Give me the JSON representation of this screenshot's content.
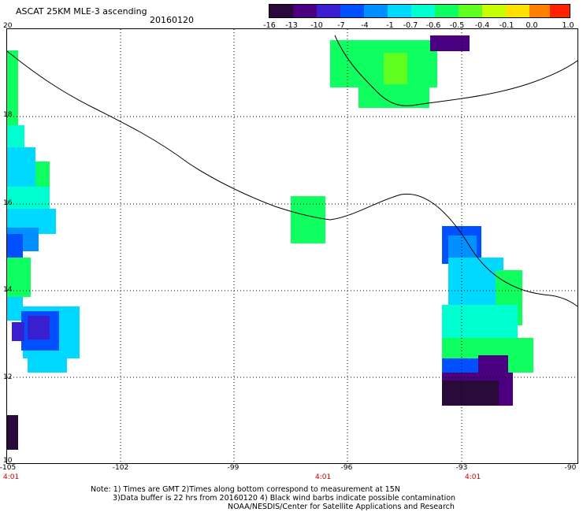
{
  "header": {
    "title": "ASCAT 25KM MLE-3 ascending",
    "date": "20160120"
  },
  "colorbar": {
    "labels": [
      "-16",
      "-13",
      "-10",
      "-7",
      "-4",
      "-1",
      "-0.7",
      "-0.6",
      "-0.5",
      "-0.4",
      "-0.1",
      "0.0",
      "1.0"
    ],
    "colors": [
      "#2a0a3a",
      "#4b0082",
      "#3a1fd0",
      "#0050ff",
      "#0090ff",
      "#00d8ff",
      "#00ffd0",
      "#10ff60",
      "#60ff20",
      "#c8ff00",
      "#ffe000",
      "#ff8000",
      "#ff2000"
    ]
  },
  "map": {
    "lat_labels": [
      "20",
      "18",
      "16",
      "14",
      "12",
      "10"
    ],
    "lon_labels": [
      "-105",
      "-102",
      "-99",
      "-96",
      "-93",
      "-90"
    ],
    "time_labels": [
      "4:01",
      "4:01",
      "4:01"
    ]
  },
  "notes": {
    "line1": "Note: 1) Times are GMT 2)Times along bottom correspond to measurement at 15N",
    "line2": "3)Data buffer is 22 hrs from 20160120 4) Black wind barbs indicate possible contamination",
    "line3": "NOAA/NESDIS/Center for Satellite Applications and Research"
  }
}
